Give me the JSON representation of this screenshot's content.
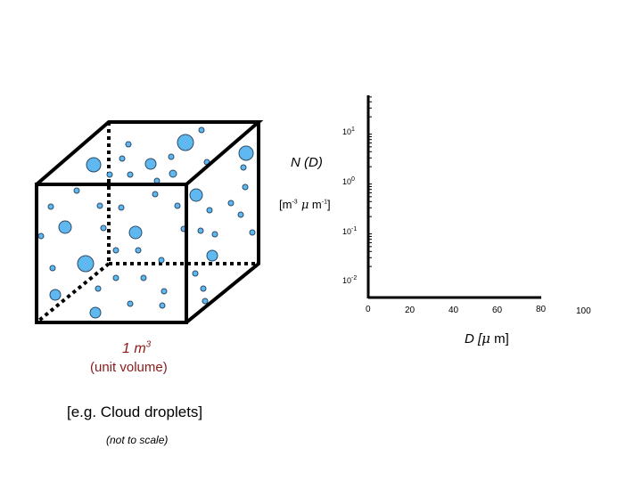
{
  "cube": {
    "volume_label": "1 m",
    "volume_exponent": "3",
    "subtitle": "(unit volume)",
    "example": "[e.g. Cloud droplets]",
    "note": "(not to scale)",
    "droplet_color": "#5fb8f0",
    "droplet_stroke": "#2a4a66"
  },
  "axis": {
    "y_title": "N (D)",
    "y_unit_open": "[m",
    "y_unit_exp1": "-3",
    "y_unit_mu": " μ",
    "y_unit_m": " m",
    "y_unit_exp2": "-1",
    "y_unit_close": "]",
    "x_title_pre": "D [",
    "x_title_mu": "μ",
    "x_title_post": " m]",
    "y_ticks": [
      {
        "base": "10",
        "exp": "1"
      },
      {
        "base": "10",
        "exp": "0"
      },
      {
        "base": "10",
        "exp": "-1"
      },
      {
        "base": "10",
        "exp": "-2"
      }
    ],
    "x_ticks": [
      "0",
      "20",
      "40",
      "60",
      "80",
      "100"
    ]
  },
  "chart_data": {
    "type": "line",
    "xlabel": "D [μ m]",
    "ylabel": "N (D) [m-3 μ m-1]",
    "y_scale": "log",
    "ylim": [
      0.01,
      10
    ],
    "xlim": [
      0,
      100
    ],
    "x_ticks": [
      0,
      20,
      40,
      60,
      80,
      100
    ],
    "y_ticks": [
      10,
      1,
      0.1,
      0.01
    ],
    "grid": false,
    "series": []
  }
}
